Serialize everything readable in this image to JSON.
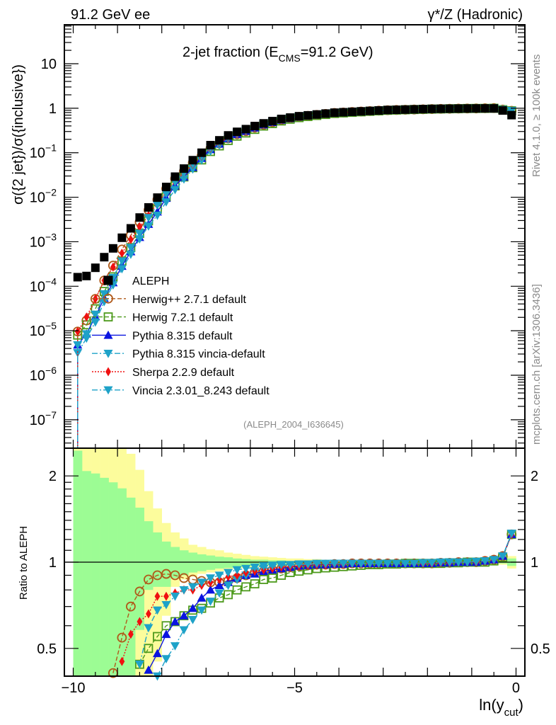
{
  "header": {
    "left": "91.2 GeV ee",
    "right": "γ*/Z (Hadronic)"
  },
  "side_text": {
    "rivet": "Rivet 4.1.0, ≥ 100k events",
    "mcplots": "mcplots.cern.ch [arXiv:1306.3436]"
  },
  "chart_data": {
    "type": "line",
    "title": {
      "prefix": "2-jet fraction (E",
      "sub": "CMS",
      "suffix": "=91.2 GeV)"
    },
    "analysis_tag": "(ALEPH_2004_I636645)",
    "xlabel": {
      "main": "ln(y",
      "sub": "cut",
      "close": ")"
    },
    "ylabel": "σ({2 jet})/σ({inclusive})",
    "ratio_ylabel": "Ratio to ALEPH",
    "xlim": [
      -10.2,
      0.2
    ],
    "ylim": [
      2.3e-08,
      75
    ],
    "yscale": "log",
    "ratio_ylim": [
      0.4,
      2.5
    ],
    "ratio_yscale": "log",
    "x_tick_labels": [
      "−10",
      "−5",
      "0"
    ],
    "x_tick_values": [
      -10,
      -5,
      0
    ],
    "y_tick_labels": [
      {
        "base": "10",
        "exp": ""
      },
      {
        "base": "1",
        "exp": ""
      },
      {
        "base": "10",
        "exp": "−1"
      },
      {
        "base": "10",
        "exp": "−2"
      },
      {
        "base": "10",
        "exp": "−3"
      },
      {
        "base": "10",
        "exp": "−4"
      },
      {
        "base": "10",
        "exp": "−5"
      },
      {
        "base": "10",
        "exp": "−6"
      },
      {
        "base": "10",
        "exp": "−7"
      }
    ],
    "y_tick_values": [
      10,
      1,
      0.1,
      0.01,
      0.001,
      0.0001,
      1e-05,
      1e-06,
      1e-07
    ],
    "ratio_tick_labels": [
      "2",
      "1",
      "0.5"
    ],
    "ratio_tick_values": [
      2,
      1,
      0.5
    ],
    "legend_position": "center-left",
    "bin_width": 0.2,
    "x": [
      -9.9,
      -9.7,
      -9.5,
      -9.3,
      -9.1,
      -8.9,
      -8.7,
      -8.5,
      -8.3,
      -8.1,
      -7.9,
      -7.7,
      -7.5,
      -7.3,
      -7.1,
      -6.9,
      -6.7,
      -6.5,
      -6.3,
      -6.1,
      -5.9,
      -5.7,
      -5.5,
      -5.3,
      -5.1,
      -4.9,
      -4.7,
      -4.5,
      -4.3,
      -4.1,
      -3.9,
      -3.7,
      -3.5,
      -3.3,
      -3.1,
      -2.9,
      -2.7,
      -2.5,
      -2.3,
      -2.1,
      -1.9,
      -1.7,
      -1.5,
      -1.3,
      -1.1,
      -0.9,
      -0.7,
      -0.5,
      -0.3,
      -0.1
    ],
    "data": {
      "name": "ALEPH",
      "color": "#000000",
      "values": [
        0.00016,
        0.00017,
        0.00026,
        0.00045,
        0.00071,
        0.00123,
        0.002,
        0.0035,
        0.0059,
        0.0098,
        0.017,
        0.029,
        0.044,
        0.068,
        0.1,
        0.148,
        0.19,
        0.245,
        0.295,
        0.339,
        0.398,
        0.457,
        0.513,
        0.575,
        0.617,
        0.661,
        0.692,
        0.724,
        0.759,
        0.794,
        0.813,
        0.832,
        0.851,
        0.871,
        0.891,
        0.912,
        0.923,
        0.933,
        0.944,
        0.955,
        0.966,
        0.973,
        0.977,
        0.982,
        0.986,
        0.989,
        0.991,
        0.989,
        0.89,
        0.7
      ],
      "band_stat": {
        "color": "#9cfc94",
        "hi": [
          2.45,
          2.08,
          2.04,
          1.97,
          1.9,
          1.81,
          1.68,
          1.55,
          1.39,
          1.27,
          1.18,
          1.13,
          1.1,
          1.08,
          1.065,
          1.055,
          1.045,
          1.04,
          1.03,
          1.025,
          1.02,
          1.02,
          1.015,
          1.015,
          1.01,
          1.01,
          1.01,
          1.01,
          1.008,
          1.008,
          1.006,
          1.006,
          1.005,
          1.005,
          1.005,
          1.005,
          1.004,
          1.004,
          1.004,
          1.004,
          1.004,
          1.004,
          1.004,
          1.004,
          1.005,
          1.005,
          1.006,
          1.008,
          1.01,
          1.03
        ],
        "lo": [
          0.1,
          0.1,
          0.1,
          0.1,
          0.1,
          0.1,
          0.1,
          0.58,
          0.8,
          0.82,
          0.82,
          0.88,
          0.9,
          0.92,
          0.93,
          0.94,
          0.95,
          0.955,
          0.96,
          0.965,
          0.97,
          0.975,
          0.98,
          0.982,
          0.985,
          0.988,
          0.99,
          0.99,
          0.992,
          0.992,
          0.994,
          0.994,
          0.995,
          0.995,
          0.995,
          0.995,
          0.996,
          0.996,
          0.996,
          0.996,
          0.996,
          0.996,
          0.996,
          0.996,
          0.995,
          0.995,
          0.994,
          0.992,
          0.99,
          0.97
        ]
      },
      "band_total": {
        "color": "#fcfc9c",
        "hi": [
          3,
          3,
          3,
          3,
          3,
          3,
          2.39,
          2.1,
          1.77,
          1.54,
          1.37,
          1.27,
          1.21,
          1.15,
          1.13,
          1.11,
          1.1,
          1.08,
          1.07,
          1.06,
          1.05,
          1.045,
          1.04,
          1.035,
          1.03,
          1.03,
          1.025,
          1.025,
          1.02,
          1.02,
          1.018,
          1.016,
          1.015,
          1.014,
          1.013,
          1.012,
          1.012,
          1.011,
          1.011,
          1.01,
          1.01,
          1.01,
          1.01,
          1.01,
          1.01,
          1.012,
          1.014,
          1.016,
          1.02,
          1.05
        ],
        "lo": [
          0.1,
          0.1,
          0.1,
          0.1,
          0.1,
          0.1,
          0.1,
          0.1,
          0.1,
          0.45,
          0.65,
          0.82,
          0.87,
          0.89,
          0.91,
          0.92,
          0.93,
          0.94,
          0.95,
          0.955,
          0.96,
          0.965,
          0.97,
          0.972,
          0.975,
          0.975,
          0.978,
          0.98,
          0.982,
          0.984,
          0.985,
          0.986,
          0.987,
          0.988,
          0.988,
          0.989,
          0.99,
          0.99,
          0.99,
          0.99,
          0.99,
          0.99,
          0.99,
          0.99,
          0.99,
          0.988,
          0.986,
          0.984,
          0.98,
          0.95
        ]
      }
    },
    "series": [
      {
        "name": "Herwig++ 2.7.1 default",
        "color": "#b05a1a",
        "marker": "open-circle",
        "dash": "6,3",
        "ratio": [
          0.06,
          0.1,
          0.2,
          0.3,
          0.41,
          0.545,
          0.7,
          0.79,
          0.87,
          0.9,
          0.91,
          0.9,
          0.88,
          0.87,
          0.86,
          0.85,
          0.85,
          0.86,
          0.88,
          0.9,
          0.92,
          0.93,
          0.94,
          0.95,
          0.96,
          0.97,
          0.975,
          0.98,
          0.98,
          0.985,
          0.985,
          0.99,
          0.99,
          0.99,
          0.99,
          0.99,
          0.99,
          0.99,
          0.99,
          0.99,
          0.99,
          0.995,
          0.995,
          1.0,
          1.0,
          1.0,
          1.01,
          1.02,
          1.05,
          1.25
        ]
      },
      {
        "name": "Herwig 7.2.1 default",
        "color": "#4d9a1c",
        "marker": "open-square",
        "dash": "6,3",
        "ratio": [
          0.05,
          0.08,
          0.12,
          0.17,
          0.23,
          0.3,
          0.37,
          0.44,
          0.5,
          0.55,
          0.6,
          0.62,
          0.65,
          0.68,
          0.69,
          0.72,
          0.75,
          0.77,
          0.8,
          0.82,
          0.84,
          0.87,
          0.88,
          0.9,
          0.92,
          0.93,
          0.94,
          0.95,
          0.955,
          0.96,
          0.965,
          0.97,
          0.975,
          0.98,
          0.98,
          0.985,
          0.985,
          0.99,
          0.99,
          0.99,
          0.99,
          0.99,
          0.995,
          0.995,
          1.0,
          1.0,
          1.0,
          1.01,
          1.04,
          1.25
        ]
      },
      {
        "name": "Pythia 8.315 default",
        "color": "#0a14e0",
        "marker": "triangle-up",
        "dash": "",
        "ratio": [
          0.03,
          0.05,
          0.08,
          0.12,
          0.17,
          0.23,
          0.3,
          0.36,
          0.42,
          0.48,
          0.56,
          0.62,
          0.65,
          0.69,
          0.75,
          0.8,
          0.83,
          0.85,
          0.88,
          0.9,
          0.91,
          0.93,
          0.94,
          0.95,
          0.96,
          0.97,
          0.975,
          0.98,
          0.98,
          0.985,
          0.985,
          0.99,
          0.99,
          0.99,
          0.99,
          0.99,
          0.99,
          0.99,
          0.99,
          0.99,
          0.99,
          0.995,
          0.995,
          1.0,
          1.0,
          1.0,
          1.01,
          1.02,
          1.05,
          1.25
        ]
      },
      {
        "name": "Pythia 8.315 vincia-default",
        "color": "#1ea2c8",
        "marker": "triangle-down",
        "dash": "8,3,2,3",
        "ratio": [
          0.02,
          0.04,
          0.06,
          0.1,
          0.15,
          0.2,
          0.26,
          0.33,
          0.38,
          0.4,
          0.46,
          0.51,
          0.58,
          0.63,
          0.68,
          0.73,
          0.78,
          0.83,
          0.87,
          0.9,
          0.93,
          0.95,
          0.96,
          0.97,
          0.975,
          0.98,
          0.98,
          0.985,
          0.985,
          0.99,
          0.99,
          0.99,
          0.99,
          0.99,
          0.99,
          0.99,
          0.99,
          0.99,
          0.99,
          0.99,
          0.995,
          0.995,
          1.0,
          1.0,
          1.0,
          1.005,
          1.01,
          1.02,
          1.05,
          1.26
        ]
      },
      {
        "name": "Sherpa 2.2.9 default",
        "color": "#f01010",
        "marker": "diamond",
        "dash": "2,2",
        "ratio": [
          0.06,
          0.12,
          0.2,
          0.3,
          0.38,
          0.45,
          0.56,
          0.62,
          0.66,
          0.76,
          0.76,
          0.78,
          0.8,
          0.8,
          0.83,
          0.85,
          0.87,
          0.89,
          0.9,
          0.92,
          0.93,
          0.94,
          0.95,
          0.96,
          0.965,
          0.97,
          0.975,
          0.98,
          0.98,
          0.985,
          0.985,
          0.99,
          0.99,
          0.99,
          0.99,
          0.99,
          0.99,
          0.99,
          0.99,
          0.99,
          0.99,
          0.995,
          0.995,
          1.0,
          1.0,
          1.0,
          1.01,
          1.02,
          1.05,
          1.25
        ]
      },
      {
        "name": "Vincia 2.3.01_8.243 default",
        "color": "#1ea2c8",
        "marker": "triangle-down",
        "dash": "8,3,2,3",
        "ratio": [
          0.03,
          0.05,
          0.09,
          0.15,
          0.22,
          0.3,
          0.37,
          0.44,
          0.59,
          0.68,
          0.71,
          0.76,
          0.8,
          0.82,
          0.85,
          0.88,
          0.9,
          0.92,
          0.94,
          0.95,
          0.96,
          0.97,
          0.975,
          0.98,
          0.98,
          0.985,
          0.985,
          0.99,
          0.99,
          0.99,
          0.99,
          0.99,
          0.99,
          0.99,
          0.99,
          0.99,
          0.99,
          0.99,
          0.99,
          0.995,
          0.995,
          1.0,
          1.0,
          1.0,
          1.0,
          1.005,
          1.01,
          1.02,
          1.05,
          1.26
        ]
      }
    ]
  }
}
